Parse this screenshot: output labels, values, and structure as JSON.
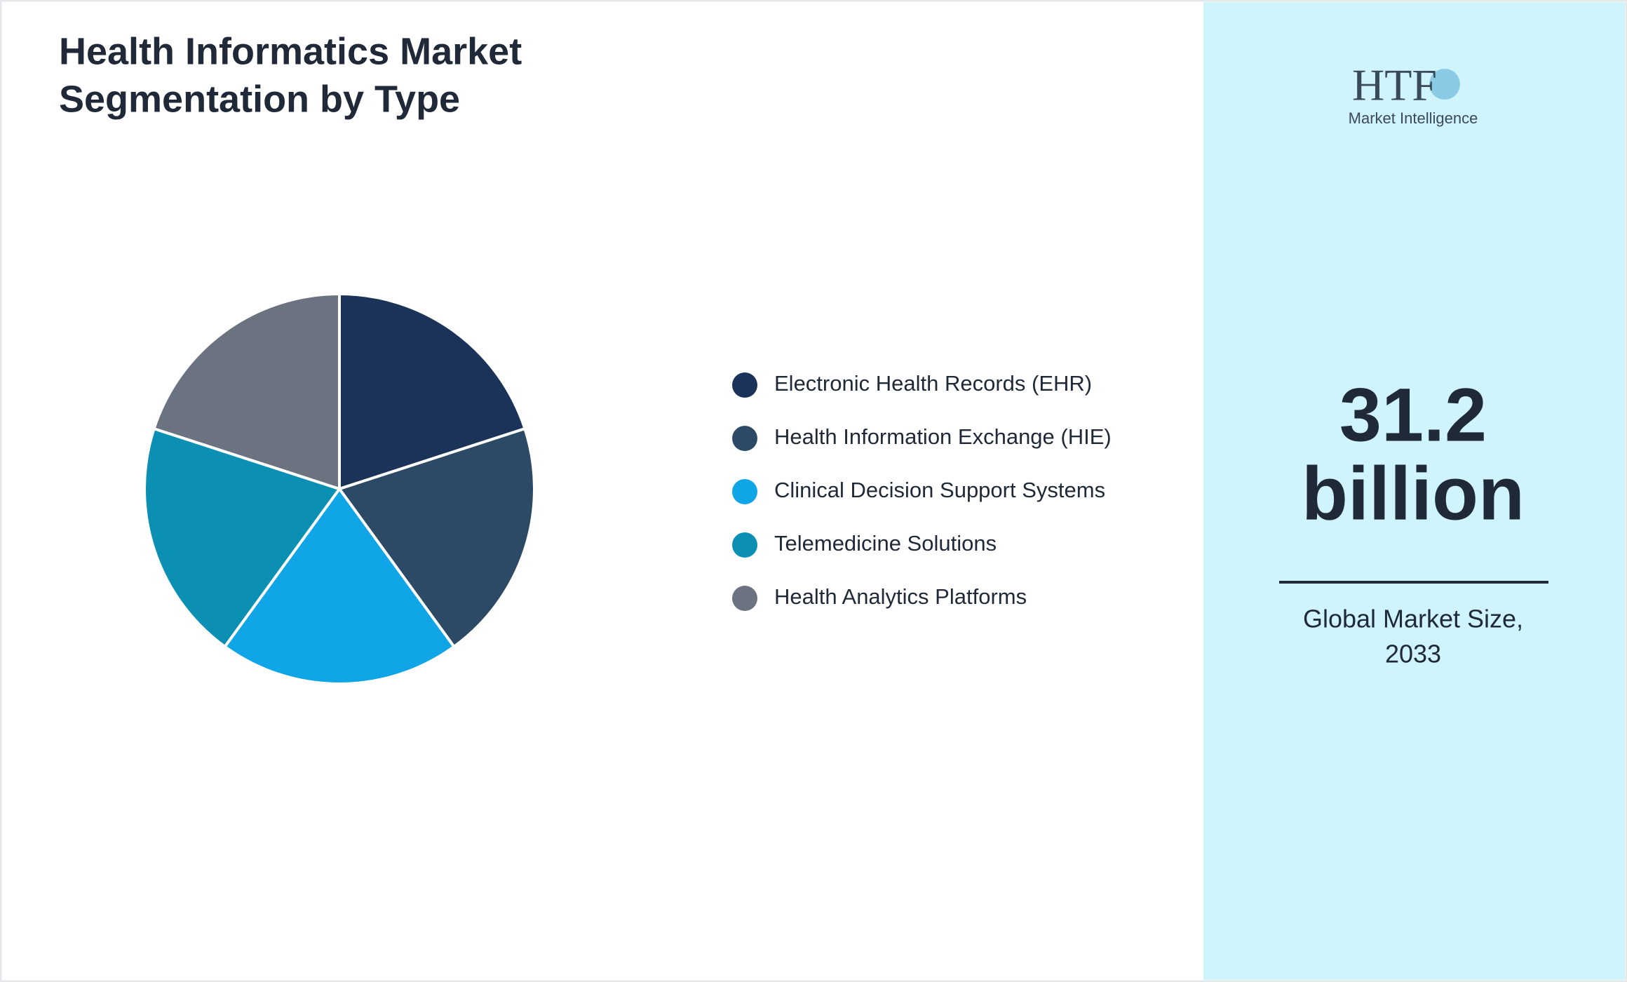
{
  "chart_data": {
    "type": "pie",
    "title": [
      "Health Informatics Market",
      "Segmentation by Type"
    ],
    "categories": [
      "Electronic Health Records (EHR)",
      "Health Information Exchange (HIE)",
      "Clinical Decision Support Systems",
      "Telemedicine Solutions",
      "Health Analytics Platforms"
    ],
    "values": [
      20,
      20,
      20,
      20,
      20
    ],
    "colors": [
      "#1b3358",
      "#2c4a66",
      "#0fa5e6",
      "#0b90b3",
      "#6b7280"
    ]
  },
  "side_panel": {
    "logo": {
      "mark": "HTF",
      "tagline": "Market Intelligence"
    },
    "headline": [
      "31.2",
      "billion"
    ],
    "caption": [
      "Global Market Size,",
      "2033"
    ]
  }
}
